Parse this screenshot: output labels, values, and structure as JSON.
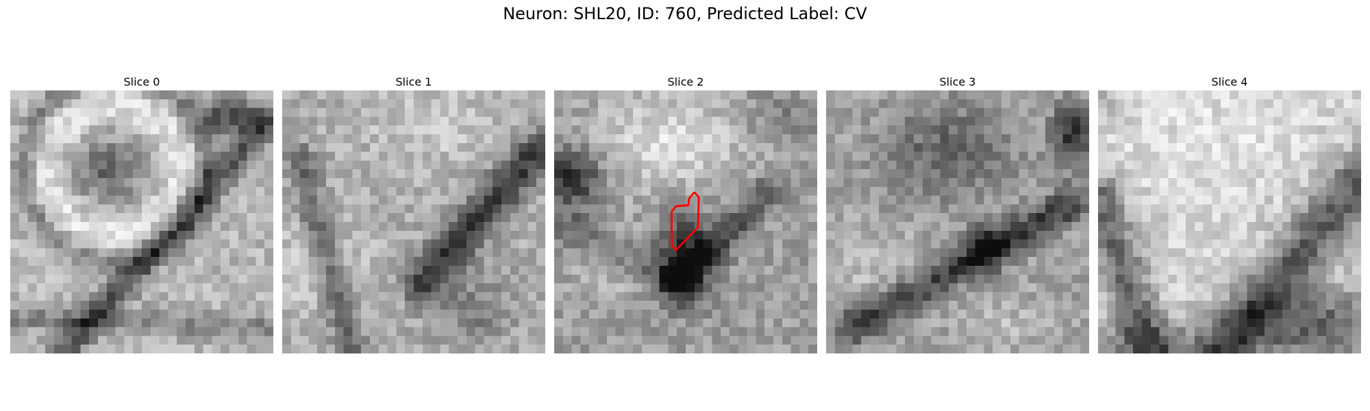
{
  "figure": {
    "title": "Neuron: SHL20, ID: 760, Predicted Label: CV"
  },
  "panels": [
    {
      "title": "Slice 0"
    },
    {
      "title": "Slice 1"
    },
    {
      "title": "Slice 2"
    },
    {
      "title": "Slice 3"
    },
    {
      "title": "Slice 4"
    }
  ],
  "grid": {
    "cols": 30,
    "rows": 30
  },
  "contour": {
    "panel": 2,
    "color": "#ff0000",
    "points": [
      [
        16.0,
        11.6
      ],
      [
        16.5,
        12.2
      ],
      [
        16.4,
        15.6
      ],
      [
        13.9,
        18.2
      ],
      [
        13.4,
        17.6
      ],
      [
        13.4,
        13.8
      ],
      [
        13.9,
        13.2
      ],
      [
        15.3,
        13.1
      ],
      [
        15.4,
        12.3
      ],
      [
        16.0,
        11.6
      ]
    ]
  }
}
